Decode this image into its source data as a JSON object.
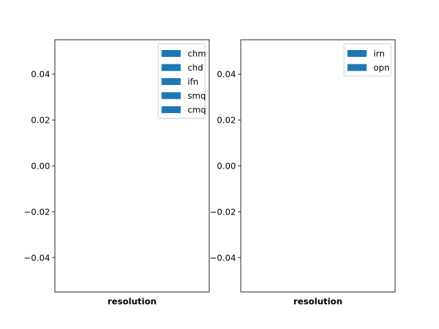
{
  "chart_data": [
    {
      "type": "bar",
      "xlabel": "resolution",
      "ylabel": "",
      "title": "",
      "ylim": [
        -0.055,
        0.055
      ],
      "yticks": [
        -0.04,
        -0.02,
        0.0,
        0.02,
        0.04
      ],
      "ytick_labels": [
        "−0.04",
        "−0.02",
        "0.00",
        "0.02",
        "0.04"
      ],
      "grid": false,
      "legend_position": "upper right",
      "series": [
        {
          "name": "chm",
          "values": [],
          "color": "#1f77b4"
        },
        {
          "name": "chd",
          "values": [],
          "color": "#1f77b4"
        },
        {
          "name": "ifn",
          "values": [],
          "color": "#1f77b4"
        },
        {
          "name": "smq",
          "values": [],
          "color": "#1f77b4"
        },
        {
          "name": "cmq",
          "values": [],
          "color": "#1f77b4"
        }
      ]
    },
    {
      "type": "bar",
      "xlabel": "resolution",
      "ylabel": "",
      "title": "",
      "ylim": [
        -0.055,
        0.055
      ],
      "yticks": [
        -0.04,
        -0.02,
        0.0,
        0.02,
        0.04
      ],
      "ytick_labels": [
        "−0.04",
        "−0.02",
        "0.00",
        "0.02",
        "0.04"
      ],
      "grid": false,
      "legend_position": "upper right",
      "series": [
        {
          "name": "irn",
          "values": [],
          "color": "#1f77b4"
        },
        {
          "name": "opn",
          "values": [],
          "color": "#1f77b4"
        }
      ]
    }
  ]
}
